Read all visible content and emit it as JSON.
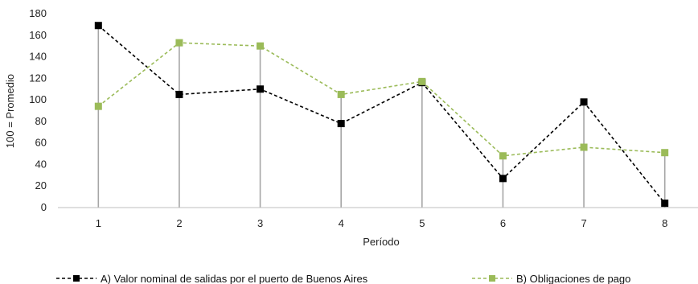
{
  "chart_data": {
    "type": "line",
    "title": "",
    "xlabel": "Período",
    "ylabel": "100 = Promedio",
    "x": [
      1,
      2,
      3,
      4,
      5,
      6,
      7,
      8
    ],
    "ylim": [
      0,
      180
    ],
    "yticks": [
      0,
      20,
      40,
      60,
      80,
      100,
      120,
      140,
      160,
      180
    ],
    "grid": false,
    "legend_position": "bottom",
    "drop_lines": true,
    "series": [
      {
        "name": "A) Valor nominal de salidas por el puerto de Buenos Aires",
        "values": [
          169,
          105,
          110,
          78,
          116,
          27,
          98,
          4
        ],
        "color": "#000000",
        "line_style": "dashed",
        "marker": "square"
      },
      {
        "name": "B) Obligaciones de pago",
        "values": [
          94,
          153,
          150,
          105,
          117,
          48,
          56,
          51
        ],
        "color": "#9BBB59",
        "line_style": "dashed",
        "marker": "square"
      }
    ]
  }
}
